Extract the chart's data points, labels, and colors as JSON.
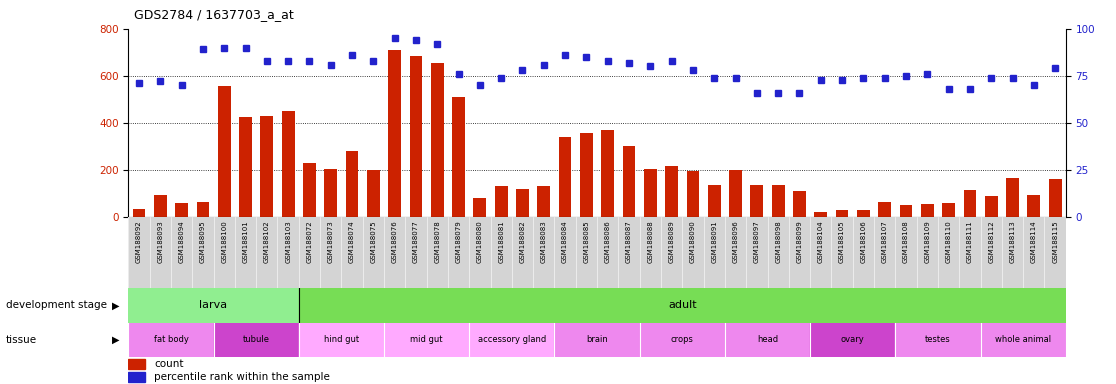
{
  "title": "GDS2784 / 1637703_a_at",
  "samples": [
    "GSM188092",
    "GSM188093",
    "GSM188094",
    "GSM188095",
    "GSM188100",
    "GSM188101",
    "GSM188102",
    "GSM188103",
    "GSM188072",
    "GSM188073",
    "GSM188074",
    "GSM188075",
    "GSM188076",
    "GSM188077",
    "GSM188078",
    "GSM188079",
    "GSM188080",
    "GSM188081",
    "GSM188082",
    "GSM188083",
    "GSM188084",
    "GSM188085",
    "GSM188086",
    "GSM188087",
    "GSM188088",
    "GSM188089",
    "GSM188090",
    "GSM188091",
    "GSM188096",
    "GSM188097",
    "GSM188098",
    "GSM188099",
    "GSM188104",
    "GSM188105",
    "GSM188106",
    "GSM188107",
    "GSM188108",
    "GSM188109",
    "GSM188110",
    "GSM188111",
    "GSM188112",
    "GSM188113",
    "GSM188114",
    "GSM188115"
  ],
  "counts": [
    35,
    95,
    60,
    65,
    555,
    425,
    430,
    450,
    230,
    205,
    280,
    200,
    710,
    685,
    655,
    510,
    80,
    130,
    120,
    130,
    340,
    355,
    370,
    300,
    205,
    215,
    195,
    135,
    200,
    135,
    135,
    110,
    20,
    30,
    30,
    65,
    50,
    55,
    60,
    115,
    90,
    165,
    95,
    160
  ],
  "percentile": [
    71,
    72,
    70,
    89,
    90,
    90,
    83,
    83,
    83,
    81,
    86,
    83,
    95,
    94,
    92,
    76,
    70,
    74,
    78,
    81,
    86,
    85,
    83,
    82,
    80,
    83,
    78,
    74,
    74,
    66,
    66,
    66,
    73,
    73,
    74,
    74,
    75,
    76,
    68,
    68,
    74,
    74,
    70,
    79
  ],
  "ylim_left": [
    0,
    800
  ],
  "ylim_right": [
    0,
    100
  ],
  "yticks_left": [
    0,
    200,
    400,
    600,
    800
  ],
  "yticks_right": [
    0,
    25,
    50,
    75,
    100
  ],
  "bar_color": "#cc2200",
  "dot_color": "#2222cc",
  "xticklabel_bg": "#d4d4d4",
  "plot_bg": "#ffffff",
  "dev_larva_color": "#90ee90",
  "dev_adult_color": "#77dd55",
  "tissue_colors": [
    "#ee88ee",
    "#cc44cc",
    "#ffaaff",
    "#ffaaff",
    "#ffaaff",
    "#ee88ee",
    "#ee88ee",
    "#ee88ee",
    "#cc44cc",
    "#ee88ee",
    "#ee88ee"
  ],
  "tissue_groups": [
    {
      "label": "fat body",
      "start": 0,
      "end": 4
    },
    {
      "label": "tubule",
      "start": 4,
      "end": 8
    },
    {
      "label": "hind gut",
      "start": 8,
      "end": 12
    },
    {
      "label": "mid gut",
      "start": 12,
      "end": 16
    },
    {
      "label": "accessory gland",
      "start": 16,
      "end": 20
    },
    {
      "label": "brain",
      "start": 20,
      "end": 24
    },
    {
      "label": "crops",
      "start": 24,
      "end": 28
    },
    {
      "label": "head",
      "start": 28,
      "end": 32
    },
    {
      "label": "ovary",
      "start": 32,
      "end": 36
    },
    {
      "label": "testes",
      "start": 36,
      "end": 40
    },
    {
      "label": "whole animal",
      "start": 40,
      "end": 44
    }
  ],
  "legend_count_color": "#cc2200",
  "legend_dot_color": "#2222cc"
}
